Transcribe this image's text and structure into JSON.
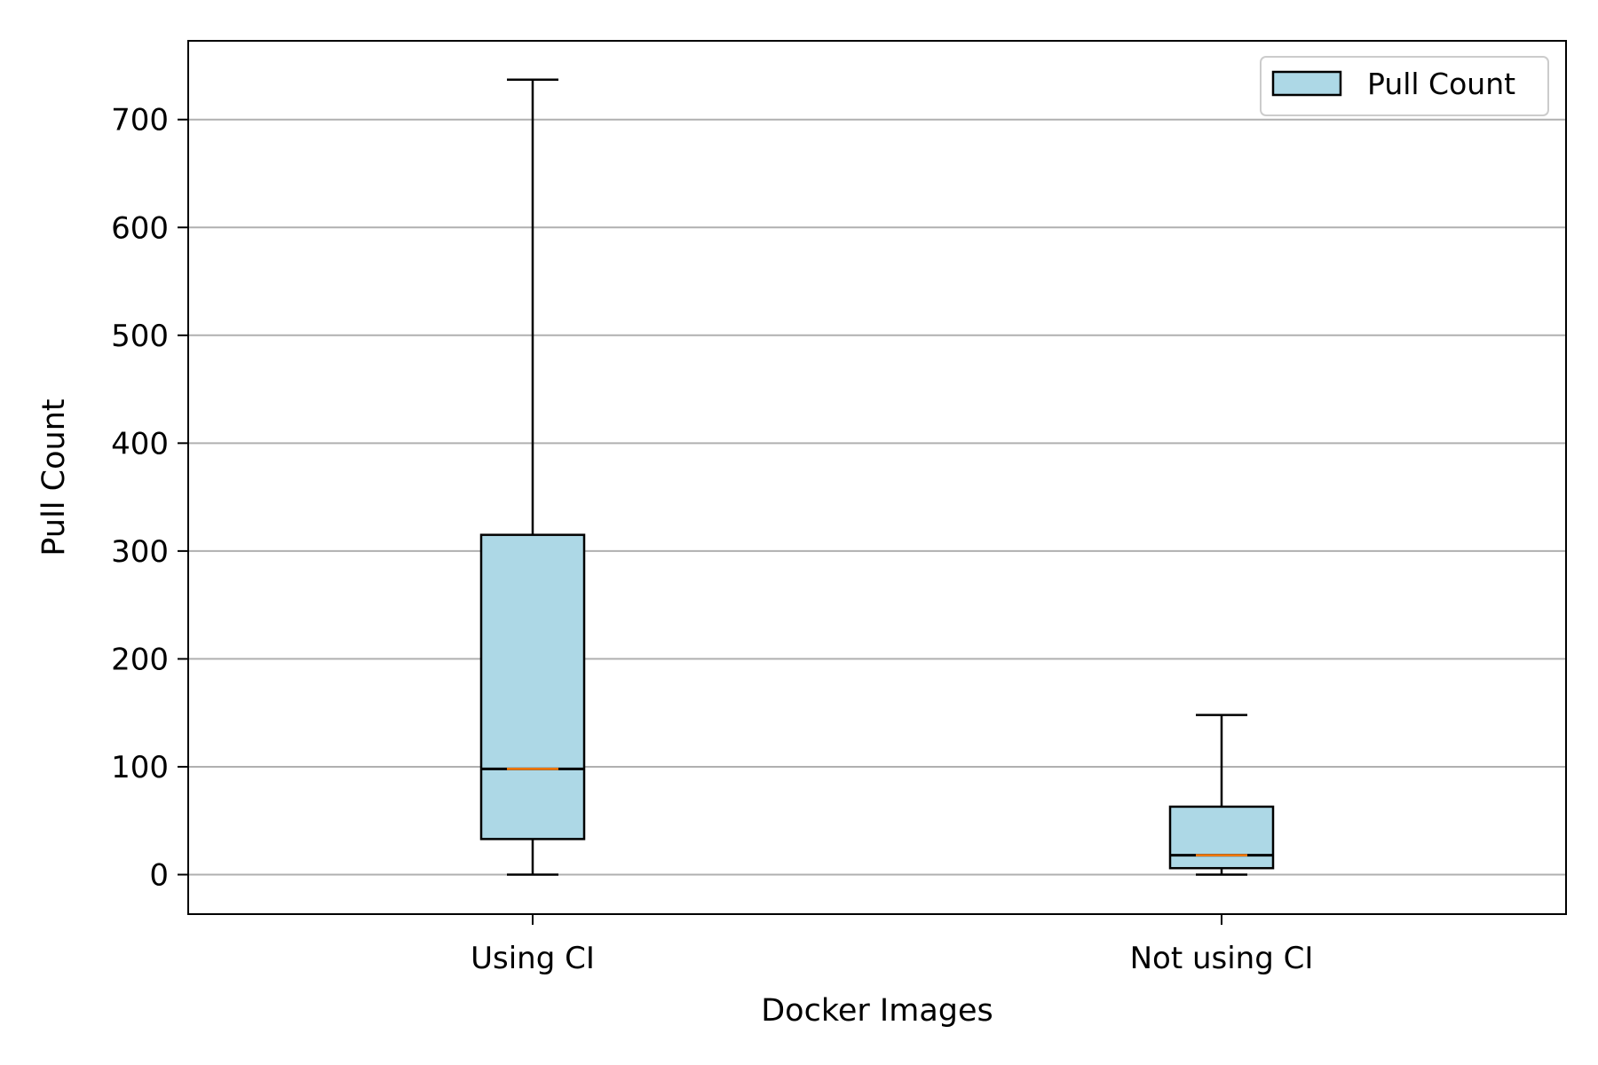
{
  "chart_data": {
    "type": "box",
    "title": "",
    "xlabel": "Docker Images",
    "ylabel": "Pull Count",
    "categories": [
      "Using CI",
      "Not using CI"
    ],
    "series": [
      {
        "name": "Pull Count",
        "boxes": [
          {
            "category": "Using CI",
            "whisker_low": 0,
            "q1": 33,
            "median": 98,
            "q3": 315,
            "whisker_high": 737
          },
          {
            "category": "Not using CI",
            "whisker_low": 0,
            "q1": 6,
            "median": 18,
            "q3": 63,
            "whisker_high": 148
          }
        ]
      }
    ],
    "y_ticks": [
      0,
      100,
      200,
      300,
      400,
      500,
      600,
      700
    ],
    "y_tick_labels": [
      "0",
      "100",
      "200",
      "300",
      "400",
      "500",
      "600",
      "700"
    ],
    "ylim": [
      -37,
      775
    ],
    "grid": "horizontal",
    "legend_position": "top-right",
    "colors": {
      "box_fill": "#add8e6",
      "box_edge": "#000000",
      "median_line": "#ff7f0e",
      "grid": "#b0b0b0"
    }
  }
}
